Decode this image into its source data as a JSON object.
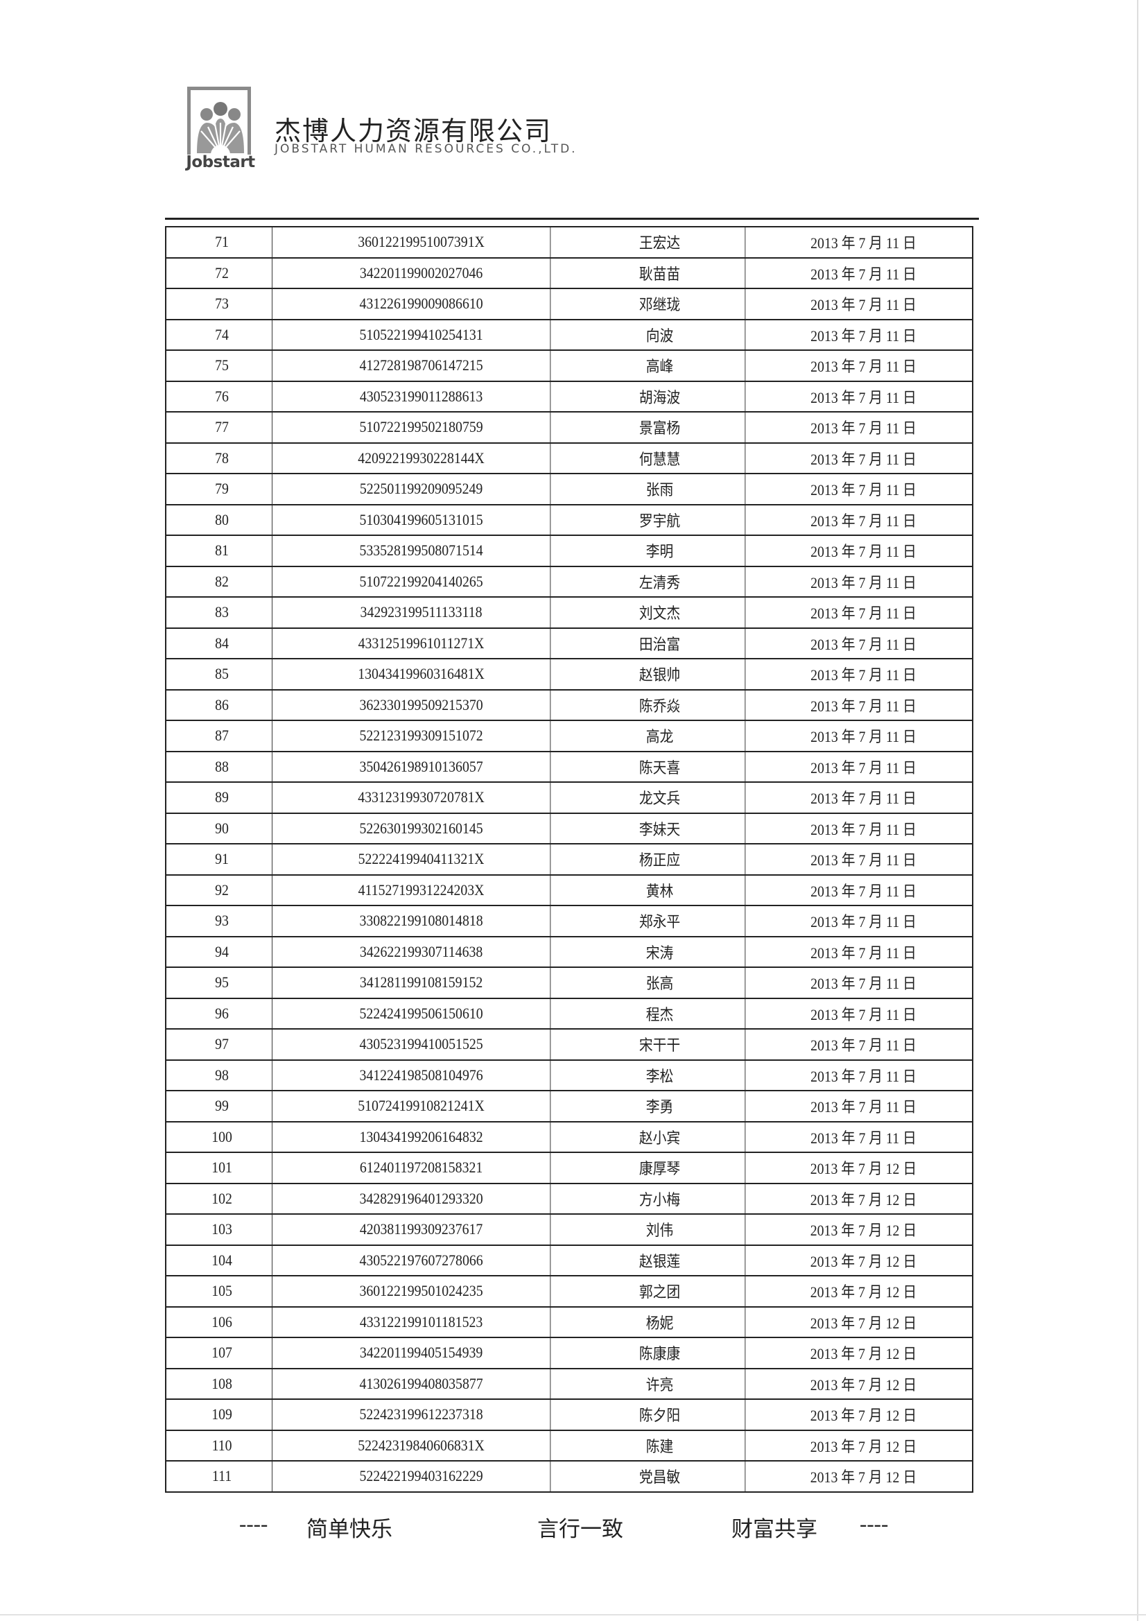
{
  "header": {
    "logo_text": "Jobstart",
    "company_cn": "杰博人力资源有限公司",
    "company_en": "JOBSTART HUMAN RESOURCES CO.,LTD."
  },
  "table": {
    "rows": [
      [
        "71",
        "36012219951007391X",
        "王宏达",
        "2013 年 7 月 11 日"
      ],
      [
        "72",
        "342201199002027046",
        "耿苗苗",
        "2013 年 7 月 11 日"
      ],
      [
        "73",
        "431226199009086610",
        "邓继珑",
        "2013 年 7 月 11 日"
      ],
      [
        "74",
        "510522199410254131",
        "向波",
        "2013 年 7 月 11 日"
      ],
      [
        "75",
        "412728198706147215",
        "高峰",
        "2013 年 7 月 11 日"
      ],
      [
        "76",
        "430523199011288613",
        "胡海波",
        "2013 年 7 月 11 日"
      ],
      [
        "77",
        "510722199502180759",
        "景富杨",
        "2013 年 7 月 11 日"
      ],
      [
        "78",
        "42092219930228144X",
        "何慧慧",
        "2013 年 7 月 11 日"
      ],
      [
        "79",
        "522501199209095249",
        "张雨",
        "2013 年 7 月 11 日"
      ],
      [
        "80",
        "510304199605131015",
        "罗宇航",
        "2013 年 7 月 11 日"
      ],
      [
        "81",
        "533528199508071514",
        "李明",
        "2013 年 7 月 11 日"
      ],
      [
        "82",
        "510722199204140265",
        "左清秀",
        "2013 年 7 月 11 日"
      ],
      [
        "83",
        "342923199511133118",
        "刘文杰",
        "2013 年 7 月 11 日"
      ],
      [
        "84",
        "43312519961011271X",
        "田治富",
        "2013 年 7 月 11 日"
      ],
      [
        "85",
        "13043419960316481X",
        "赵银帅",
        "2013 年 7 月 11 日"
      ],
      [
        "86",
        "362330199509215370",
        "陈乔焱",
        "2013 年 7 月 11 日"
      ],
      [
        "87",
        "522123199309151072",
        "高龙",
        "2013 年 7 月 11 日"
      ],
      [
        "88",
        "350426198910136057",
        "陈天喜",
        "2013 年 7 月 11 日"
      ],
      [
        "89",
        "43312319930720781X",
        "龙文兵",
        "2013 年 7 月 11 日"
      ],
      [
        "90",
        "522630199302160145",
        "李妹天",
        "2013 年 7 月 11 日"
      ],
      [
        "91",
        "52222419940411321X",
        "杨正应",
        "2013 年 7 月 11 日"
      ],
      [
        "92",
        "41152719931224203X",
        "黄林",
        "2013 年 7 月 11 日"
      ],
      [
        "93",
        "330822199108014818",
        "郑永平",
        "2013 年 7 月 11 日"
      ],
      [
        "94",
        "342622199307114638",
        "宋涛",
        "2013 年 7 月 11 日"
      ],
      [
        "95",
        "341281199108159152",
        "张高",
        "2013 年 7 月 11 日"
      ],
      [
        "96",
        "522424199506150610",
        "程杰",
        "2013 年 7 月 11 日"
      ],
      [
        "97",
        "430523199410051525",
        "宋干干",
        "2013 年 7 月 11 日"
      ],
      [
        "98",
        "341224198508104976",
        "李松",
        "2013 年 7 月 11 日"
      ],
      [
        "99",
        "51072419910821241X",
        "李勇",
        "2013 年 7 月 11 日"
      ],
      [
        "100",
        "130434199206164832",
        "赵小宾",
        "2013 年 7 月 11 日"
      ],
      [
        "101",
        "612401197208158321",
        "康厚琴",
        "2013 年 7 月 12 日"
      ],
      [
        "102",
        "342829196401293320",
        "方小梅",
        "2013 年 7 月 12 日"
      ],
      [
        "103",
        "420381199309237617",
        "刘伟",
        "2013 年 7 月 12 日"
      ],
      [
        "104",
        "430522197607278066",
        "赵银莲",
        "2013 年 7 月 12 日"
      ],
      [
        "105",
        "360122199501024235",
        "郭之团",
        "2013 年 7 月 12 日"
      ],
      [
        "106",
        "433122199101181523",
        "杨妮",
        "2013 年 7 月 12 日"
      ],
      [
        "107",
        "342201199405154939",
        "陈康康",
        "2013 年 7 月 12 日"
      ],
      [
        "108",
        "413026199408035877",
        "许亮",
        "2013 年 7 月 12 日"
      ],
      [
        "109",
        "522423199612237318",
        "陈夕阳",
        "2013 年 7 月 12 日"
      ],
      [
        "110",
        "52242319840606831X",
        "陈建",
        "2013 年 7 月 12 日"
      ],
      [
        "111",
        "522422199403162229",
        "党昌敏",
        "2013 年 7 月 12 日"
      ]
    ]
  },
  "footer": {
    "dash_left": "----",
    "motto_1": "简单快乐",
    "motto_2": "言行一致",
    "motto_3": "财富共享",
    "dash_right": "----"
  }
}
